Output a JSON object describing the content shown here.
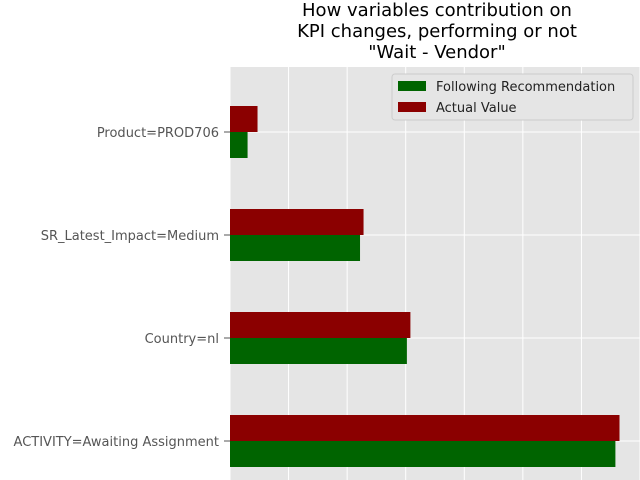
{
  "chart_data": {
    "type": "bar",
    "orientation": "horizontal",
    "title": [
      "How variables contribution on",
      "KPI changes, performing or not",
      "\"Wait - Vendor\""
    ],
    "categories": [
      "Product=PROD706",
      "SR_Latest_Impact=Medium",
      "Country=nl",
      "ACTIVITY=Awaiting Assignment"
    ],
    "series": [
      {
        "name": "Following Recommendation",
        "color": "#006400",
        "values": [
          0.3,
          2.22,
          3.02,
          6.58
        ]
      },
      {
        "name": "Actual Value",
        "color": "#8b0000",
        "values": [
          0.47,
          2.28,
          3.08,
          6.65
        ]
      }
    ],
    "xlim": [
      0,
      7.0
    ],
    "grid": true,
    "legend_position": "top-right",
    "plot_background": "#e5e5e5",
    "grid_color": "#ffffff"
  }
}
